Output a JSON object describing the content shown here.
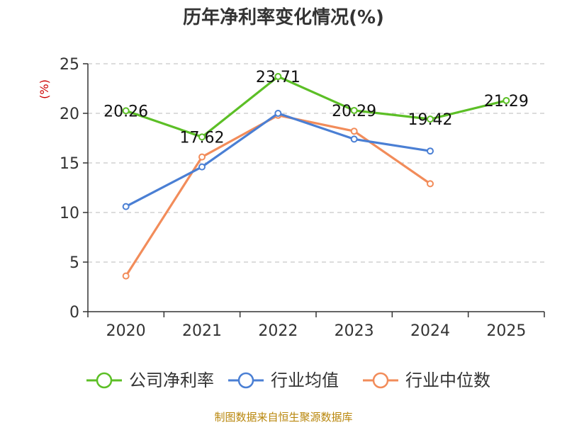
{
  "chart_data": {
    "type": "line",
    "title": "历年净利率变化情况(%)",
    "ylabel": "(%)",
    "xlabel": "",
    "categories": [
      "2020",
      "2021",
      "2022",
      "2023",
      "2024",
      "2025"
    ],
    "ylim": [
      0,
      25
    ],
    "yticks": [
      0,
      5,
      10,
      15,
      20,
      25
    ],
    "grid": true,
    "legend_position": "bottom",
    "series": [
      {
        "name": "公司净利率",
        "color": "#5cbf26",
        "show_labels": true,
        "values": [
          20.26,
          17.62,
          23.71,
          20.29,
          19.42,
          21.29
        ],
        "labels": [
          "20.26",
          "17.62",
          "23.71",
          "20.29",
          "19.42",
          "21.29"
        ]
      },
      {
        "name": "行业均值",
        "color": "#4a7fd4",
        "show_labels": false,
        "values": [
          10.6,
          14.6,
          20.0,
          17.4,
          16.2,
          null
        ]
      },
      {
        "name": "行业中位数",
        "color": "#f28c5a",
        "show_labels": false,
        "values": [
          3.6,
          15.6,
          19.8,
          18.2,
          12.9,
          null
        ]
      }
    ]
  },
  "source_text": "制图数据来自恒生聚源数据库"
}
